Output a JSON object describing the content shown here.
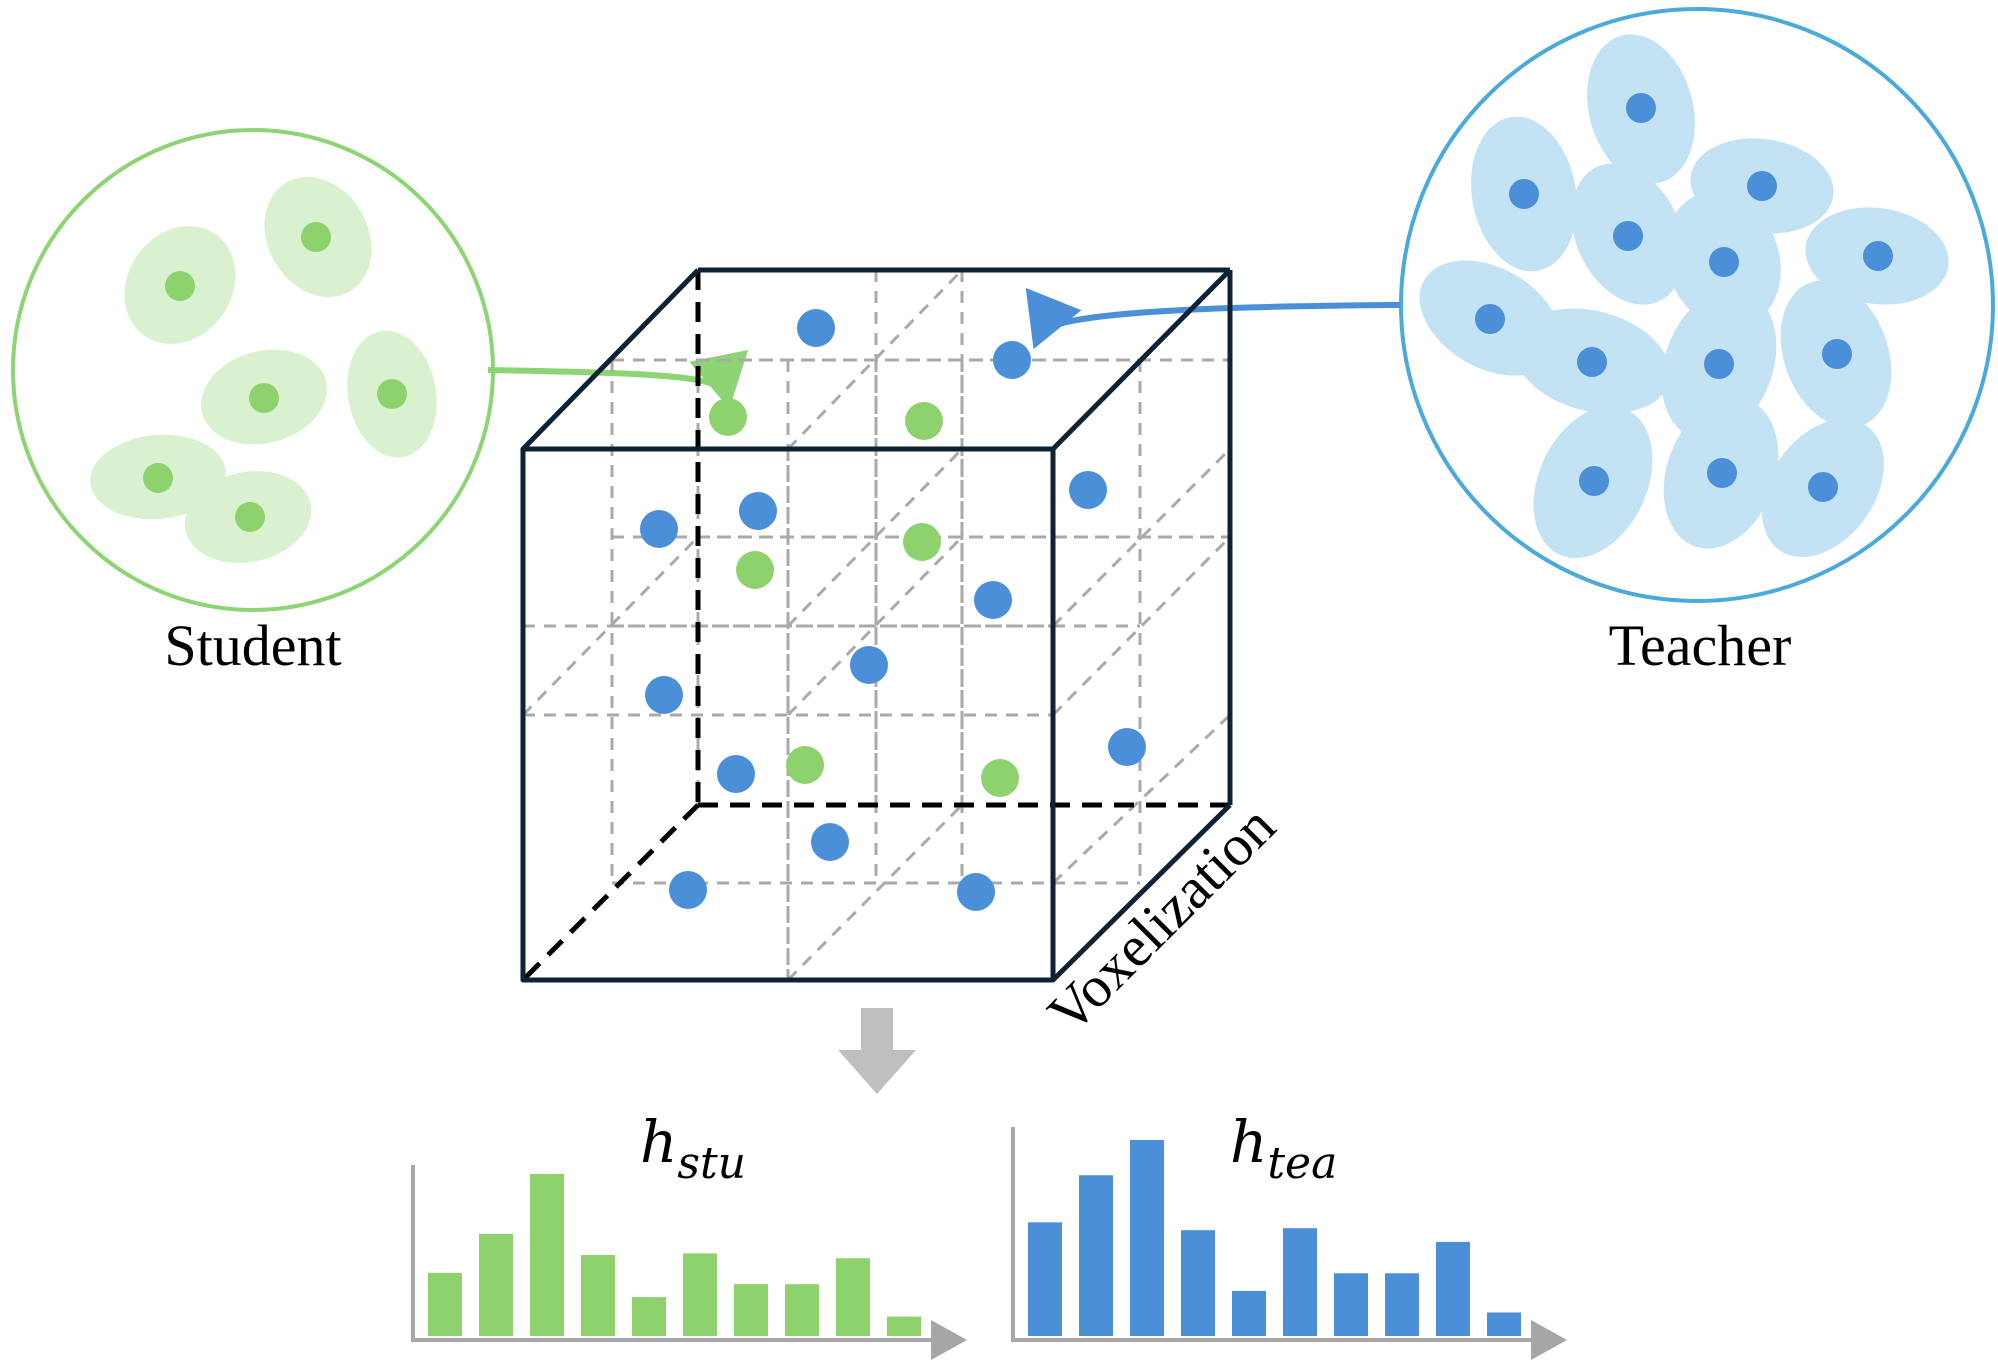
{
  "labels": {
    "student": "Student",
    "teacher": "Teacher",
    "voxelization": "Voxelization"
  },
  "histograms": {
    "student": {
      "symbol": "h",
      "subscript": "stu",
      "relative_heights": [
        0.39,
        0.63,
        1.0,
        0.5,
        0.24,
        0.51,
        0.32,
        0.32,
        0.48,
        0.12
      ]
    },
    "teacher": {
      "symbol": "h",
      "subscript": "tea",
      "relative_heights": [
        0.58,
        0.82,
        1.0,
        0.54,
        0.23,
        0.55,
        0.32,
        0.32,
        0.48,
        0.12
      ]
    }
  },
  "colors": {
    "student_fill": "#d9f1cf",
    "student_dot": "#8ed26e",
    "student_stroke": "#8dd474",
    "teacher_fill": "#c3e3f4",
    "teacher_dot": "#4a8fd8",
    "teacher_stroke": "#4baad9",
    "cube_edge": "#0e2233",
    "grid_dash": "#aaaaaa",
    "axis": "#a6a6a6",
    "down_arrow": "#bfbfbf"
  }
}
